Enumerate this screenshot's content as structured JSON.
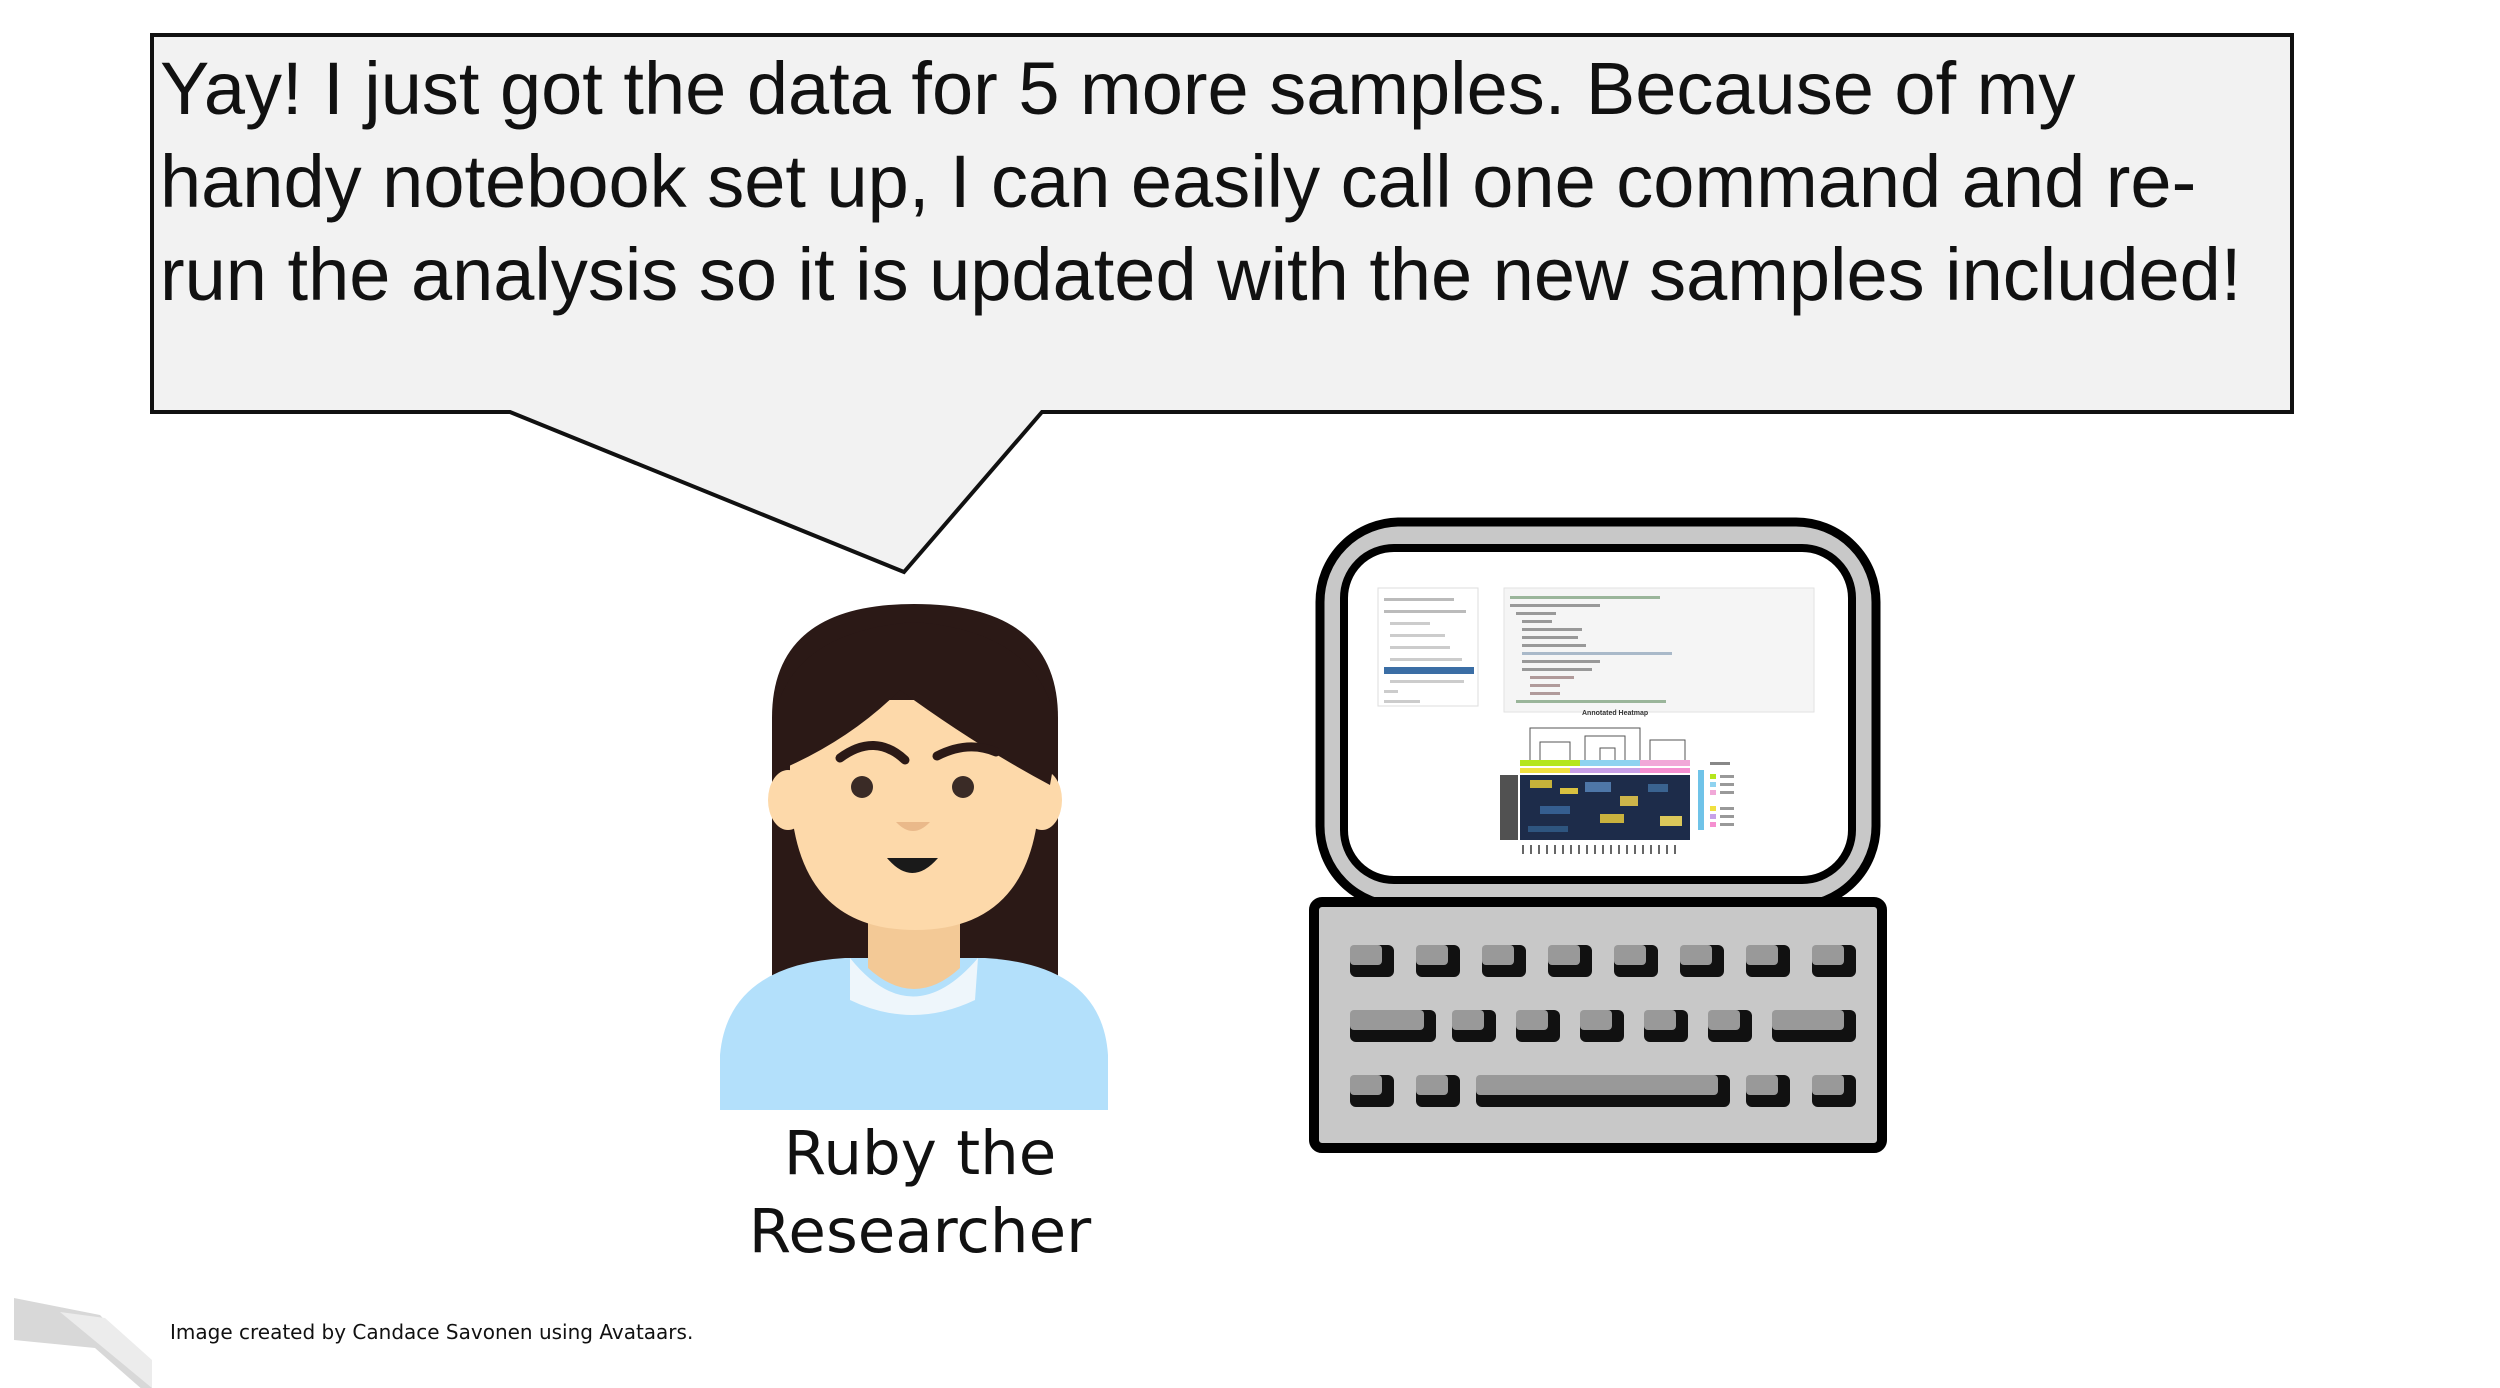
{
  "speech_bubble": {
    "text": "Yay! I just got the data for 5 more samples. Because of my handy notebook set up, I can easily call one command and re-run the analysis so it is updated with the new samples included!"
  },
  "character": {
    "name_line1": "Ruby the",
    "name_line2": "Researcher"
  },
  "credit": "Image created by Candace Savonen using Avataars.",
  "screen": {
    "heatmap_title": "Annotated Heatmap"
  },
  "colors": {
    "shirt": "#b3e0fb",
    "skin": "#fdd9aa",
    "hair": "#2b1916",
    "monitor_bezel": "#c8c8c8",
    "keyboard_body": "#c8c8c8",
    "bubble_fill": "#f2f2f2"
  }
}
